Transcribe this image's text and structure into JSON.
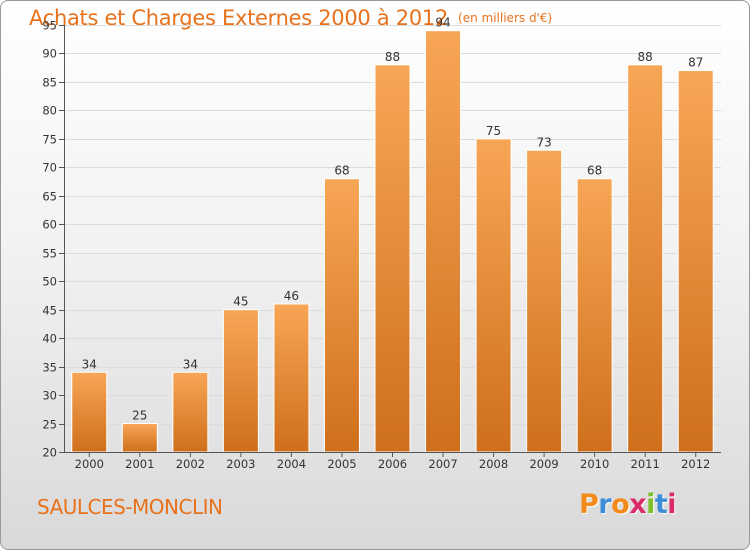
{
  "header": {
    "title": "Achats et Charges Externes 2000 à 2012",
    "subtitle": "(en milliers d'€)"
  },
  "footer": {
    "commune": "SAULCES-MONCLIN",
    "logo_text": "Proxiti"
  },
  "colors": {
    "accent": "#e8721c",
    "bar_light": "#f7a656",
    "bar_dark": "#cf6f1b",
    "logo_letters": [
      "#f28a1c",
      "#3d8ed8",
      "#f28a1c",
      "#d92b6a",
      "#7bbf2a",
      "#3d8ed8",
      "#d92b6a"
    ]
  },
  "chart_data": {
    "type": "bar",
    "title": "Achats et Charges Externes 2000 à 2012",
    "subtitle": "(en milliers d'€)",
    "xlabel": "",
    "ylabel": "",
    "categories": [
      "2000",
      "2001",
      "2002",
      "2003",
      "2004",
      "2005",
      "2006",
      "2007",
      "2008",
      "2009",
      "2010",
      "2011",
      "2012"
    ],
    "values": [
      34,
      25,
      34,
      45,
      46,
      68,
      88,
      94,
      75,
      73,
      68,
      88,
      87
    ],
    "ylim": [
      20,
      95
    ],
    "yticks": [
      20,
      25,
      30,
      35,
      40,
      45,
      50,
      55,
      60,
      65,
      70,
      75,
      80,
      85,
      90,
      95
    ],
    "grid": true,
    "legend": "none"
  }
}
